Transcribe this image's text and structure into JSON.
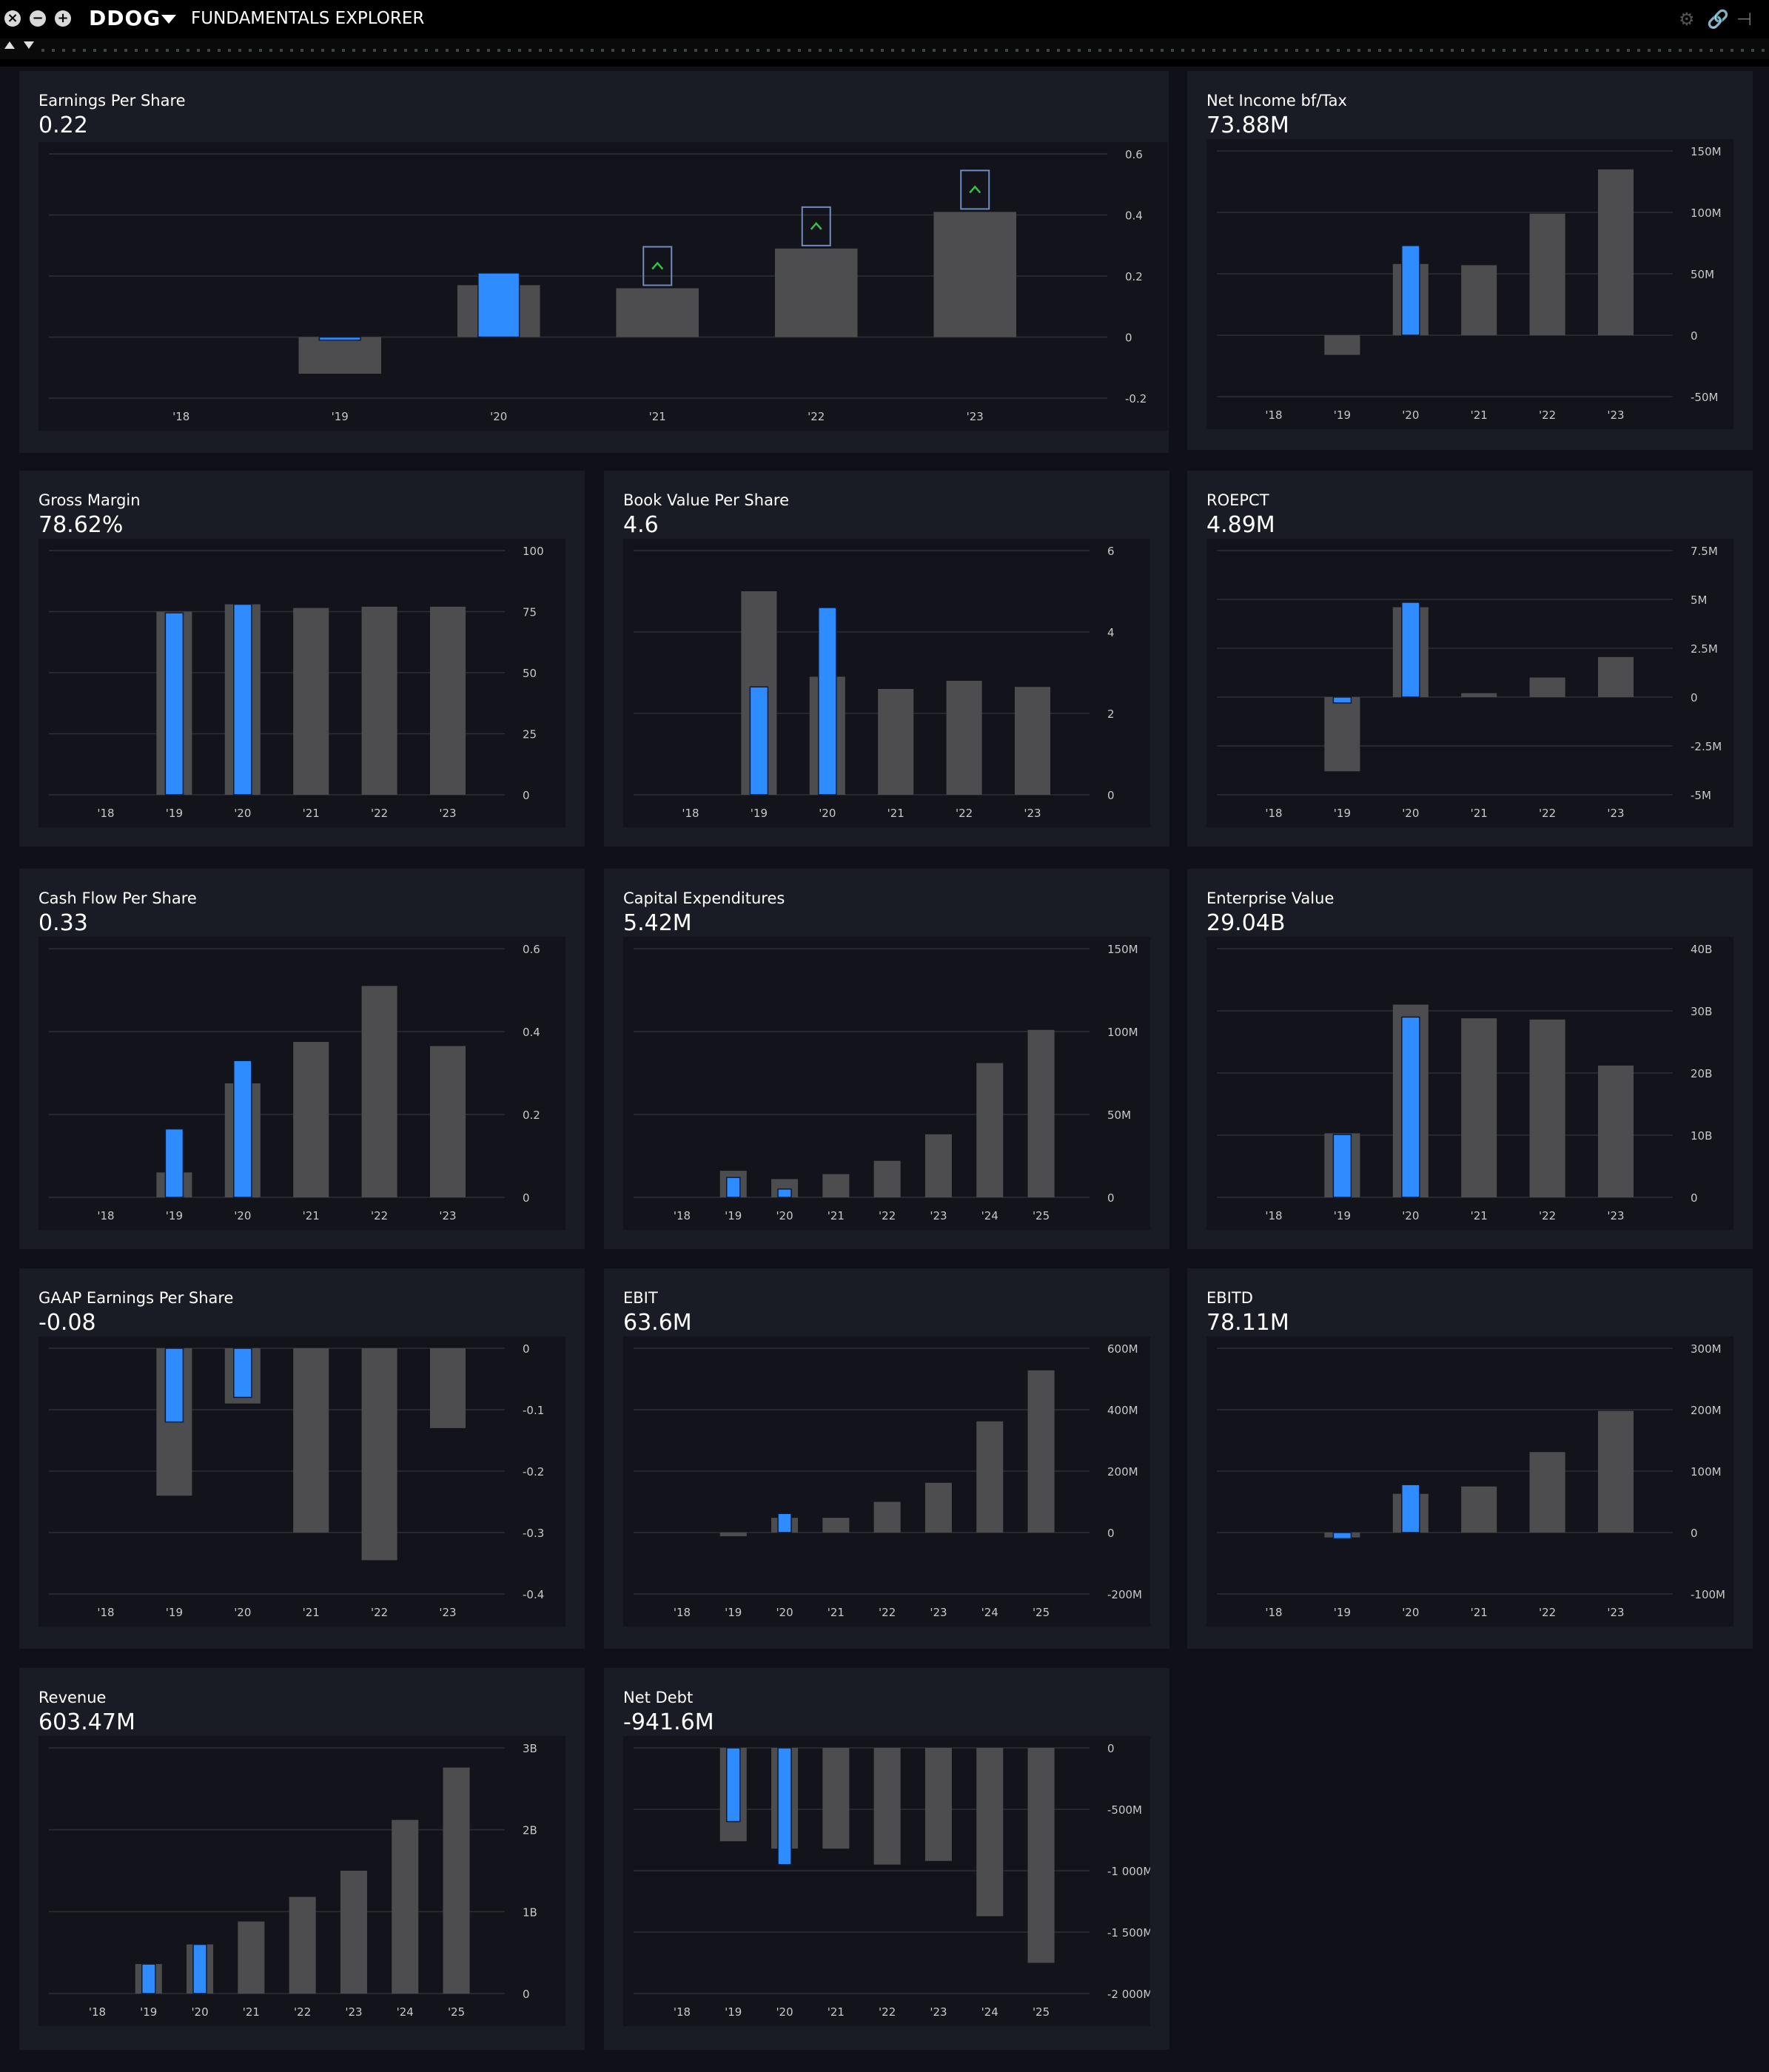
{
  "titlebar": {
    "ticker": "DDOG",
    "app_title": "FUNDAMENTALS EXPLORER",
    "window_buttons": [
      "close-icon",
      "minimize-icon",
      "expand-icon"
    ],
    "right_icons": [
      "gear-icon",
      "link-icon",
      "pin-icon"
    ],
    "link_color": "#35c04a"
  },
  "colors": {
    "highlight": "#2f8cff",
    "bar": "#4d4d50",
    "grid": "#2c2e36",
    "tick": "#c8c8c8",
    "up_marker": "#35c04a",
    "marker_border": "#6e8cc0"
  },
  "panels": [
    {
      "title": "Earnings Per Share",
      "value": "0.22"
    },
    {
      "title": "Net Income bf/Tax",
      "value": "73.88M"
    },
    {
      "title": "Gross Margin",
      "value": "78.62%"
    },
    {
      "title": "Book Value Per Share",
      "value": "4.6"
    },
    {
      "title": "ROEPCT",
      "value": "4.89M"
    },
    {
      "title": "Cash Flow Per Share",
      "value": "0.33"
    },
    {
      "title": "Capital Expenditures",
      "value": "5.42M"
    },
    {
      "title": "Enterprise Value",
      "value": "29.04B"
    },
    {
      "title": "GAAP Earnings Per Share",
      "value": "-0.08"
    },
    {
      "title": "EBIT",
      "value": "63.6M"
    },
    {
      "title": "EBITD",
      "value": "78.11M"
    },
    {
      "title": "Revenue",
      "value": "603.47M"
    },
    {
      "title": "Net Debt",
      "value": "-941.6M"
    }
  ],
  "chart_data": [
    {
      "type": "bar",
      "categories": [
        "'18",
        "'19",
        "'20",
        "'21",
        "'22",
        "'23"
      ],
      "yticks": [
        "0.6",
        "0.4",
        "0.2",
        "0",
        "-0.2"
      ],
      "ylim": [
        -0.2,
        0.6
      ],
      "series": [
        {
          "values": [
            null,
            -0.12,
            0.17,
            0.16,
            0.29,
            0.41
          ]
        },
        {
          "values": [
            null,
            -0.01,
            0.21,
            null,
            null,
            null
          ]
        }
      ],
      "up_markers": [
        "'21",
        "'22",
        "'23"
      ]
    },
    {
      "type": "bar",
      "categories": [
        "'18",
        "'19",
        "'20",
        "'21",
        "'22",
        "'23"
      ],
      "yticks": [
        "150M",
        "100M",
        "50M",
        "0",
        "-50M"
      ],
      "ylim": [
        -50,
        150
      ],
      "series": [
        {
          "values": [
            null,
            -16,
            58,
            57,
            99,
            135
          ]
        },
        {
          "values": [
            null,
            null,
            73,
            null,
            null,
            null
          ]
        }
      ]
    },
    {
      "type": "bar",
      "categories": [
        "'18",
        "'19",
        "'20",
        "'21",
        "'22",
        "'23"
      ],
      "yticks": [
        "100",
        "75",
        "50",
        "25",
        "0"
      ],
      "ylim": [
        0,
        100
      ],
      "series": [
        {
          "values": [
            null,
            75,
            78,
            76.5,
            77,
            77
          ]
        },
        {
          "values": [
            null,
            74.5,
            78,
            null,
            null,
            null
          ]
        }
      ]
    },
    {
      "type": "bar",
      "categories": [
        "'18",
        "'19",
        "'20",
        "'21",
        "'22",
        "'23"
      ],
      "yticks": [
        "6",
        "4",
        "2",
        "0"
      ],
      "ylim": [
        0,
        6
      ],
      "series": [
        {
          "values": [
            null,
            5,
            2.9,
            2.6,
            2.8,
            2.65
          ]
        },
        {
          "values": [
            null,
            2.65,
            4.6,
            null,
            null,
            null
          ]
        }
      ]
    },
    {
      "type": "bar",
      "categories": [
        "'18",
        "'19",
        "'20",
        "'21",
        "'22",
        "'23"
      ],
      "yticks": [
        "7.5M",
        "5M",
        "2.5M",
        "0",
        "-2.5M",
        "-5M"
      ],
      "ylim": [
        -5,
        7.5
      ],
      "series": [
        {
          "values": [
            null,
            -3.8,
            4.6,
            0.2,
            1,
            2.05
          ]
        },
        {
          "values": [
            null,
            -0.3,
            4.85,
            null,
            null,
            null
          ]
        }
      ]
    },
    {
      "type": "bar",
      "categories": [
        "'18",
        "'19",
        "'20",
        "'21",
        "'22",
        "'23"
      ],
      "yticks": [
        "0.6",
        "0.4",
        "0.2",
        "0"
      ],
      "ylim": [
        0,
        0.6
      ],
      "series": [
        {
          "values": [
            null,
            0.06,
            0.275,
            0.375,
            0.51,
            0.365
          ]
        },
        {
          "values": [
            null,
            0.165,
            0.33,
            null,
            null,
            null
          ]
        }
      ]
    },
    {
      "type": "bar",
      "categories": [
        "'18",
        "'19",
        "'20",
        "'21",
        "'22",
        "'23",
        "'24",
        "'25"
      ],
      "yticks": [
        "150M",
        "100M",
        "50M",
        "0"
      ],
      "ylim": [
        0,
        150
      ],
      "series": [
        {
          "values": [
            null,
            16,
            11,
            14,
            22,
            38,
            81,
            101
          ]
        },
        {
          "values": [
            null,
            12,
            5,
            null,
            null,
            null,
            null,
            null
          ]
        }
      ]
    },
    {
      "type": "bar",
      "categories": [
        "'18",
        "'19",
        "'20",
        "'21",
        "'22",
        "'23"
      ],
      "yticks": [
        "40B",
        "30B",
        "20B",
        "10B",
        "0"
      ],
      "ylim": [
        0,
        40
      ],
      "series": [
        {
          "values": [
            null,
            10.3,
            31,
            28.8,
            28.6,
            21.2
          ]
        },
        {
          "values": [
            null,
            10.1,
            29,
            null,
            null,
            null
          ]
        }
      ]
    },
    {
      "type": "bar",
      "categories": [
        "'18",
        "'19",
        "'20",
        "'21",
        "'22",
        "'23"
      ],
      "yticks": [
        "0",
        "-0.1",
        "-0.2",
        "-0.3",
        "-0.4"
      ],
      "ylim": [
        -0.4,
        0
      ],
      "series": [
        {
          "values": [
            null,
            -0.24,
            -0.09,
            -0.3,
            -0.345,
            -0.13
          ]
        },
        {
          "values": [
            null,
            -0.12,
            -0.08,
            null,
            null,
            null
          ]
        }
      ]
    },
    {
      "type": "bar",
      "categories": [
        "'18",
        "'19",
        "'20",
        "'21",
        "'22",
        "'23",
        "'24",
        "'25"
      ],
      "yticks": [
        "600M",
        "400M",
        "200M",
        "0",
        "-200M"
      ],
      "ylim": [
        -200,
        600
      ],
      "series": [
        {
          "values": [
            null,
            -12,
            48,
            48,
            100,
            162,
            362,
            528
          ]
        },
        {
          "values": [
            null,
            null,
            62,
            null,
            null,
            null,
            null,
            null
          ]
        }
      ]
    },
    {
      "type": "bar",
      "categories": [
        "'18",
        "'19",
        "'20",
        "'21",
        "'22",
        "'23"
      ],
      "yticks": [
        "300M",
        "200M",
        "100M",
        "0",
        "-100M"
      ],
      "ylim": [
        -100,
        300
      ],
      "series": [
        {
          "values": [
            null,
            -8,
            63,
            75,
            131,
            198
          ]
        },
        {
          "values": [
            null,
            -10,
            78,
            null,
            null,
            null
          ]
        }
      ]
    },
    {
      "type": "bar",
      "categories": [
        "'18",
        "'19",
        "'20",
        "'21",
        "'22",
        "'23",
        "'24",
        "'25"
      ],
      "yticks": [
        "3B",
        "2B",
        "1B",
        "0"
      ],
      "ylim": [
        0,
        3
      ],
      "series": [
        {
          "values": [
            null,
            0.36,
            0.6,
            0.88,
            1.18,
            1.5,
            2.12,
            2.76
          ]
        },
        {
          "values": [
            null,
            0.36,
            0.6,
            null,
            null,
            null,
            null,
            null
          ]
        }
      ]
    },
    {
      "type": "bar",
      "categories": [
        "'18",
        "'19",
        "'20",
        "'21",
        "'22",
        "'23",
        "'24",
        "'25"
      ],
      "yticks": [
        "0",
        "-500M",
        "-1 000M",
        "-1 500M",
        "-2 000M"
      ],
      "ylim": [
        -2000,
        0
      ],
      "series": [
        {
          "values": [
            null,
            -760,
            -820,
            -820,
            -950,
            -920,
            -1370,
            -1750
          ]
        },
        {
          "values": [
            null,
            -600,
            -950,
            null,
            null,
            null,
            null,
            null
          ]
        }
      ]
    }
  ]
}
